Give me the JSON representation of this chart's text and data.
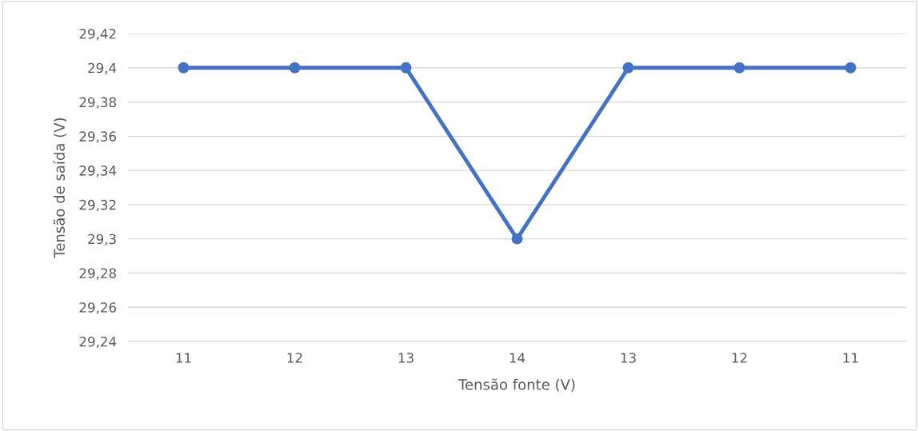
{
  "chart_data": {
    "type": "line",
    "xlabel": "Tensão fonte (V)",
    "ylabel": "Tensão de saída (V)",
    "categories": [
      "11",
      "12",
      "13",
      "14",
      "13",
      "12",
      "11"
    ],
    "series": [
      {
        "color": "#4472c4",
        "values": [
          29.4,
          29.4,
          29.4,
          29.3,
          29.4,
          29.4,
          29.4
        ]
      }
    ],
    "ylim": [
      29.24,
      29.42
    ],
    "yticks": [
      {
        "value": 29.24,
        "label": "29,24"
      },
      {
        "value": 29.26,
        "label": "29,26"
      },
      {
        "value": 29.28,
        "label": "29,28"
      },
      {
        "value": 29.3,
        "label": "29,3"
      },
      {
        "value": 29.32,
        "label": "29,32"
      },
      {
        "value": 29.34,
        "label": "29,34"
      },
      {
        "value": 29.36,
        "label": "29,36"
      },
      {
        "value": 29.38,
        "label": "29,38"
      },
      {
        "value": 29.4,
        "label": "29,4"
      },
      {
        "value": 29.42,
        "label": "29,42"
      }
    ],
    "grid": "y",
    "marker": "circle",
    "line_style": "solid"
  }
}
